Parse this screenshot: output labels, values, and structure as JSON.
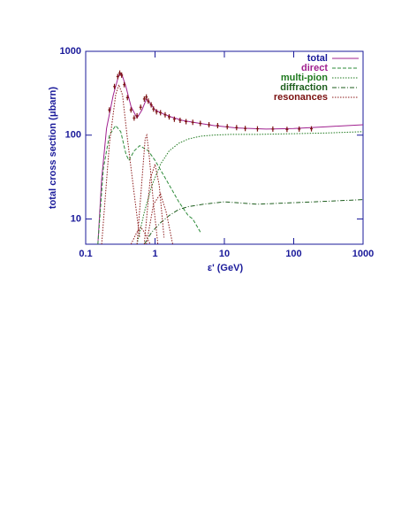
{
  "chart_data": {
    "type": "line",
    "xlabel": "ε'     (GeV)",
    "ylabel": "total cross section     (μbarn)",
    "xscale": "log",
    "yscale": "log",
    "xlim": [
      0.1,
      1000
    ],
    "ylim": [
      5,
      1000
    ],
    "xticks": [
      0.1,
      1,
      10,
      100,
      1000
    ],
    "yticks": [
      10,
      100,
      1000
    ],
    "legend": "upper right",
    "series": [
      {
        "name": "total",
        "color": "#a0208f",
        "dash": "solid",
        "x": [
          0.15,
          0.17,
          0.2,
          0.25,
          0.3,
          0.33,
          0.38,
          0.45,
          0.55,
          0.65,
          0.75,
          0.85,
          1,
          1.3,
          1.7,
          2.5,
          4,
          7,
          15,
          40,
          100,
          300,
          1000
        ],
        "values": [
          5,
          30,
          120,
          300,
          520,
          540,
          380,
          220,
          160,
          200,
          270,
          240,
          200,
          180,
          165,
          150,
          140,
          130,
          122,
          118,
          120,
          126,
          133
        ]
      },
      {
        "name": "direct",
        "color": "#2e8b3a",
        "dash": "dashed",
        "x": [
          0.15,
          0.18,
          0.22,
          0.27,
          0.32,
          0.38,
          0.42,
          0.5,
          0.6,
          0.8,
          1,
          1.5,
          2.2,
          3,
          3.5,
          4.5
        ],
        "values": [
          5,
          40,
          100,
          130,
          110,
          60,
          50,
          65,
          75,
          65,
          50,
          28,
          16,
          11,
          10,
          7
        ]
      },
      {
        "name": "multi-pion",
        "color": "#1f7a1f",
        "dash": "dotted",
        "x": [
          0.55,
          0.7,
          0.9,
          1.2,
          1.6,
          2.2,
          3,
          4.5,
          7,
          12,
          30,
          100,
          300,
          1000
        ],
        "values": [
          5,
          12,
          25,
          45,
          65,
          80,
          90,
          97,
          100,
          102,
          102,
          104,
          106,
          110
        ]
      },
      {
        "name": "diffraction",
        "color": "#1e5e1e",
        "dash": "dashdot",
        "x": [
          0.7,
          0.9,
          1.2,
          1.6,
          2.2,
          3,
          5,
          10,
          30,
          200,
          1000
        ],
        "values": [
          5,
          7,
          9,
          11,
          13,
          14,
          15,
          16,
          15,
          16,
          17
        ]
      },
      {
        "name": "resonances",
        "color": "#8b1a1a",
        "dash": "dotted",
        "x": [
          0.17,
          0.22,
          0.27,
          0.3,
          0.34,
          0.4,
          0.5,
          0.6,
          null,
          0.55,
          0.65,
          0.72,
          0.76,
          0.82,
          0.95,
          1.1,
          null,
          0.7,
          0.85,
          1.0,
          1.15,
          1.35,
          null,
          0.75,
          0.95,
          1.2,
          1.45,
          1.8,
          null,
          0.45,
          0.55,
          0.62,
          0.7,
          0.85
        ],
        "values": [
          5,
          80,
          300,
          400,
          300,
          90,
          20,
          6,
          null,
          5,
          30,
          90,
          100,
          60,
          15,
          5,
          null,
          5,
          30,
          45,
          25,
          6,
          null,
          5,
          15,
          20,
          12,
          5,
          null,
          5,
          7,
          8,
          7,
          5
        ]
      }
    ],
    "points": {
      "color": "#7a1010",
      "x": [
        0.22,
        0.26,
        0.29,
        0.31,
        0.33,
        0.36,
        0.4,
        0.45,
        0.5,
        0.55,
        0.62,
        0.7,
        0.75,
        0.8,
        0.88,
        0.95,
        1.05,
        1.2,
        1.4,
        1.6,
        1.9,
        2.3,
        2.8,
        3.5,
        4.5,
        6,
        8,
        11,
        15,
        20,
        30,
        50,
        80,
        120,
        180
      ],
      "values": [
        200,
        380,
        500,
        550,
        520,
        400,
        280,
        200,
        160,
        170,
        215,
        270,
        285,
        255,
        230,
        205,
        190,
        185,
        175,
        165,
        155,
        150,
        145,
        142,
        138,
        133,
        130,
        126,
        123,
        120,
        119,
        118,
        117,
        118,
        119
      ]
    }
  }
}
